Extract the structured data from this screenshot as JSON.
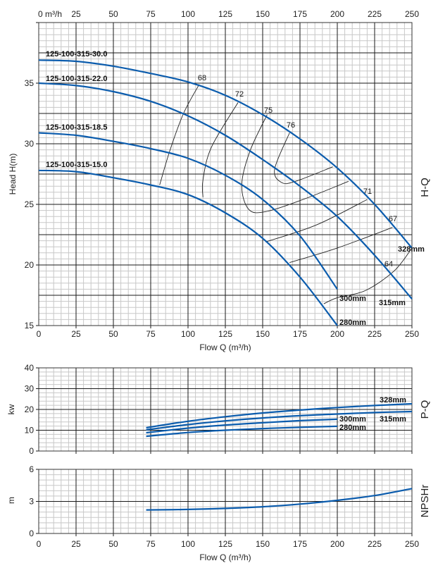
{
  "chart_data": [
    {
      "type": "line",
      "title": "H-Q",
      "xlabel": "Flow Q (m³/h)",
      "ylabel": "Head H(m)",
      "top_axis_unit": "0 m³/h",
      "xlim": [
        0,
        250
      ],
      "ylim": [
        15,
        40
      ],
      "x_ticks": [
        "0",
        "25",
        "50",
        "75",
        "100",
        "125",
        "150",
        "175",
        "200",
        "225",
        "250"
      ],
      "top_x_ticks": [
        "25",
        "50",
        "75",
        "100",
        "125",
        "150",
        "175",
        "200",
        "225",
        "250"
      ],
      "y_ticks": [
        "15",
        "20",
        "25",
        "30",
        "35"
      ],
      "grid": true,
      "model_labels": [
        "125-100-315-30.0",
        "125-100-315-22.0",
        "125-100-315-18.5",
        "125-100-315-15.0"
      ],
      "series": [
        {
          "name": "328mm",
          "points": [
            [
              0,
              36.9
            ],
            [
              25,
              36.8
            ],
            [
              50,
              36.4
            ],
            [
              75,
              35.8
            ],
            [
              100,
              35.1
            ],
            [
              125,
              34.0
            ],
            [
              150,
              32.4
            ],
            [
              175,
              30.4
            ],
            [
              200,
              28.0
            ],
            [
              225,
              25.0
            ],
            [
              250,
              21.4
            ]
          ]
        },
        {
          "name": "315mm",
          "points": [
            [
              0,
              35.0
            ],
            [
              25,
              34.8
            ],
            [
              50,
              34.3
            ],
            [
              75,
              33.5
            ],
            [
              100,
              32.3
            ],
            [
              125,
              30.7
            ],
            [
              150,
              28.7
            ],
            [
              175,
              26.5
            ],
            [
              200,
              24.0
            ],
            [
              225,
              20.8
            ],
            [
              250,
              17.2
            ]
          ]
        },
        {
          "name": "300mm",
          "points": [
            [
              0,
              30.9
            ],
            [
              25,
              30.7
            ],
            [
              50,
              30.2
            ],
            [
              75,
              29.6
            ],
            [
              100,
              28.8
            ],
            [
              125,
              27.4
            ],
            [
              150,
              25.4
            ],
            [
              175,
              22.4
            ],
            [
              200,
              18.0
            ]
          ]
        },
        {
          "name": "280mm",
          "points": [
            [
              0,
              27.8
            ],
            [
              25,
              27.7
            ],
            [
              50,
              27.2
            ],
            [
              75,
              26.6
            ],
            [
              100,
              25.8
            ],
            [
              125,
              24.3
            ],
            [
              150,
              22.2
            ],
            [
              175,
              19.0
            ],
            [
              200,
              15.0
            ]
          ]
        }
      ],
      "efficiency_contours": [
        {
          "label": "68",
          "points": [
            [
              107.5,
              34.9
            ],
            [
              97,
              32.5
            ],
            [
              88,
              29.5
            ],
            [
              81,
              26.6
            ]
          ]
        },
        {
          "label": "72",
          "points": [
            [
              133.5,
              33.4
            ],
            [
              115.6,
              29.7
            ],
            [
              110,
              27.0
            ],
            [
              110,
              25.6
            ]
          ]
        },
        {
          "label": "75",
          "points": [
            [
              153,
              32.4
            ],
            [
              141.5,
              29.4
            ],
            [
              136,
              26.6
            ],
            [
              140.6,
              24.6
            ],
            [
              152,
              24.4
            ],
            [
              177,
              25.4
            ],
            [
              207.5,
              26.9
            ]
          ]
        },
        {
          "label": "76",
          "points": [
            [
              168,
              30.9
            ],
            [
              158,
              27.9
            ],
            [
              162.7,
              26.8
            ],
            [
              172,
              26.9
            ],
            [
              197,
              28.1
            ]
          ]
        },
        {
          "label": "71",
          "points": [
            [
              220,
              25.4
            ],
            [
              186,
              23.3
            ],
            [
              152,
              21.9
            ]
          ]
        },
        {
          "label": "67",
          "points": [
            [
              237,
              23.1
            ],
            [
              200,
              21.4
            ],
            [
              168,
              20.2
            ]
          ]
        },
        {
          "label": "64",
          "points": [
            [
              249.5,
              21.3
            ],
            [
              238,
              19.5
            ],
            [
              219,
              17.9
            ],
            [
              200,
              17.3
            ],
            [
              191,
              16.8
            ]
          ]
        }
      ]
    },
    {
      "type": "line",
      "title": "P-Q",
      "ylabel": "kw",
      "xlim": [
        0,
        250
      ],
      "ylim": [
        0,
        40
      ],
      "y_ticks": [
        "0",
        "10",
        "20",
        "30",
        "40"
      ],
      "grid": true,
      "series": [
        {
          "name": "328mm",
          "points": [
            [
              72,
              11.2
            ],
            [
              100,
              14.3
            ],
            [
              125,
              16.5
            ],
            [
              150,
              18.3
            ],
            [
              175,
              19.7
            ],
            [
              200,
              20.9
            ],
            [
              225,
              21.9
            ],
            [
              250,
              22.7
            ]
          ]
        },
        {
          "name": "315mm",
          "points": [
            [
              72,
              10.2
            ],
            [
              100,
              12.7
            ],
            [
              125,
              14.5
            ],
            [
              150,
              15.9
            ],
            [
              175,
              17.0
            ],
            [
              200,
              17.8
            ],
            [
              225,
              18.5
            ],
            [
              250,
              19.0
            ]
          ]
        },
        {
          "name": "300mm",
          "points": [
            [
              72,
              8.8
            ],
            [
              100,
              11.0
            ],
            [
              125,
              12.5
            ],
            [
              150,
              13.6
            ],
            [
              175,
              14.6
            ],
            [
              200,
              15.3
            ]
          ]
        },
        {
          "name": "280mm",
          "points": [
            [
              72,
              7.1
            ],
            [
              100,
              8.9
            ],
            [
              125,
              10.0
            ],
            [
              150,
              10.8
            ],
            [
              175,
              11.4
            ],
            [
              200,
              11.9
            ]
          ]
        }
      ]
    },
    {
      "type": "line",
      "title": "NPSHr",
      "xlabel": "Flow Q (m³/h)",
      "ylabel": "m",
      "xlim": [
        0,
        250
      ],
      "ylim": [
        0,
        6
      ],
      "x_ticks": [
        "0",
        "25",
        "50",
        "75",
        "100",
        "125",
        "150",
        "175",
        "200",
        "225",
        "250"
      ],
      "y_ticks": [
        "0",
        "3",
        "6"
      ],
      "grid": true,
      "series": [
        {
          "name": "NPSHr",
          "points": [
            [
              72,
              2.2
            ],
            [
              100,
              2.25
            ],
            [
              125,
              2.35
            ],
            [
              150,
              2.5
            ],
            [
              175,
              2.75
            ],
            [
              200,
              3.1
            ],
            [
              225,
              3.55
            ],
            [
              250,
              4.2
            ]
          ]
        }
      ]
    }
  ],
  "colors": {
    "curve": "#0b5cad",
    "major_grid": "#1a1a1a",
    "minor_grid": "#c8c8c8",
    "contour": "#222222"
  }
}
